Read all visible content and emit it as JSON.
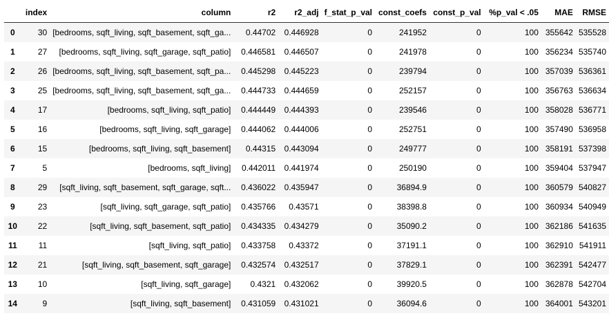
{
  "table": {
    "columns": [
      "",
      "index",
      "column",
      "r2",
      "r2_adj",
      "f_stat_p_val",
      "const_coefs",
      "const_p_val",
      "%p_val < .05",
      "MAE",
      "RMSE"
    ],
    "rows": [
      [
        "0",
        "30",
        "[bedrooms, sqft_living, sqft_basement, sqft_ga...",
        "0.44702",
        "0.446928",
        "0",
        "241952",
        "0",
        "100",
        "355642",
        "535528"
      ],
      [
        "1",
        "27",
        "[bedrooms, sqft_living, sqft_garage, sqft_patio]",
        "0.446581",
        "0.446507",
        "0",
        "241978",
        "0",
        "100",
        "356234",
        "535740"
      ],
      [
        "2",
        "26",
        "[bedrooms, sqft_living, sqft_basement, sqft_pa...",
        "0.445298",
        "0.445223",
        "0",
        "239794",
        "0",
        "100",
        "357039",
        "536361"
      ],
      [
        "3",
        "25",
        "[bedrooms, sqft_living, sqft_basement, sqft_ga...",
        "0.444733",
        "0.444659",
        "0",
        "252157",
        "0",
        "100",
        "356763",
        "536634"
      ],
      [
        "4",
        "17",
        "[bedrooms, sqft_living, sqft_patio]",
        "0.444449",
        "0.444393",
        "0",
        "239546",
        "0",
        "100",
        "358028",
        "536771"
      ],
      [
        "5",
        "16",
        "[bedrooms, sqft_living, sqft_garage]",
        "0.444062",
        "0.444006",
        "0",
        "252751",
        "0",
        "100",
        "357490",
        "536958"
      ],
      [
        "6",
        "15",
        "[bedrooms, sqft_living, sqft_basement]",
        "0.44315",
        "0.443094",
        "0",
        "249777",
        "0",
        "100",
        "358191",
        "537398"
      ],
      [
        "7",
        "5",
        "[bedrooms, sqft_living]",
        "0.442011",
        "0.441974",
        "0",
        "250190",
        "0",
        "100",
        "359404",
        "537947"
      ],
      [
        "8",
        "29",
        "[sqft_living, sqft_basement, sqft_garage, sqft...",
        "0.436022",
        "0.435947",
        "0",
        "36894.9",
        "0",
        "100",
        "360579",
        "540827"
      ],
      [
        "9",
        "23",
        "[sqft_living, sqft_garage, sqft_patio]",
        "0.435766",
        "0.43571",
        "0",
        "38398.8",
        "0",
        "100",
        "360934",
        "540949"
      ],
      [
        "10",
        "22",
        "[sqft_living, sqft_basement, sqft_patio]",
        "0.434335",
        "0.434279",
        "0",
        "35090.2",
        "0",
        "100",
        "362186",
        "541635"
      ],
      [
        "11",
        "11",
        "[sqft_living, sqft_patio]",
        "0.433758",
        "0.43372",
        "0",
        "37191.1",
        "0",
        "100",
        "362910",
        "541911"
      ],
      [
        "12",
        "21",
        "[sqft_living, sqft_basement, sqft_garage]",
        "0.432574",
        "0.432517",
        "0",
        "37829.1",
        "0",
        "100",
        "362391",
        "542477"
      ],
      [
        "13",
        "10",
        "[sqft_living, sqft_garage]",
        "0.4321",
        "0.432062",
        "0",
        "39920.5",
        "0",
        "100",
        "362878",
        "542704"
      ],
      [
        "14",
        "9",
        "[sqft_living, sqft_basement]",
        "0.431059",
        "0.431021",
        "0",
        "36094.6",
        "0",
        "100",
        "364001",
        "543201"
      ]
    ]
  }
}
